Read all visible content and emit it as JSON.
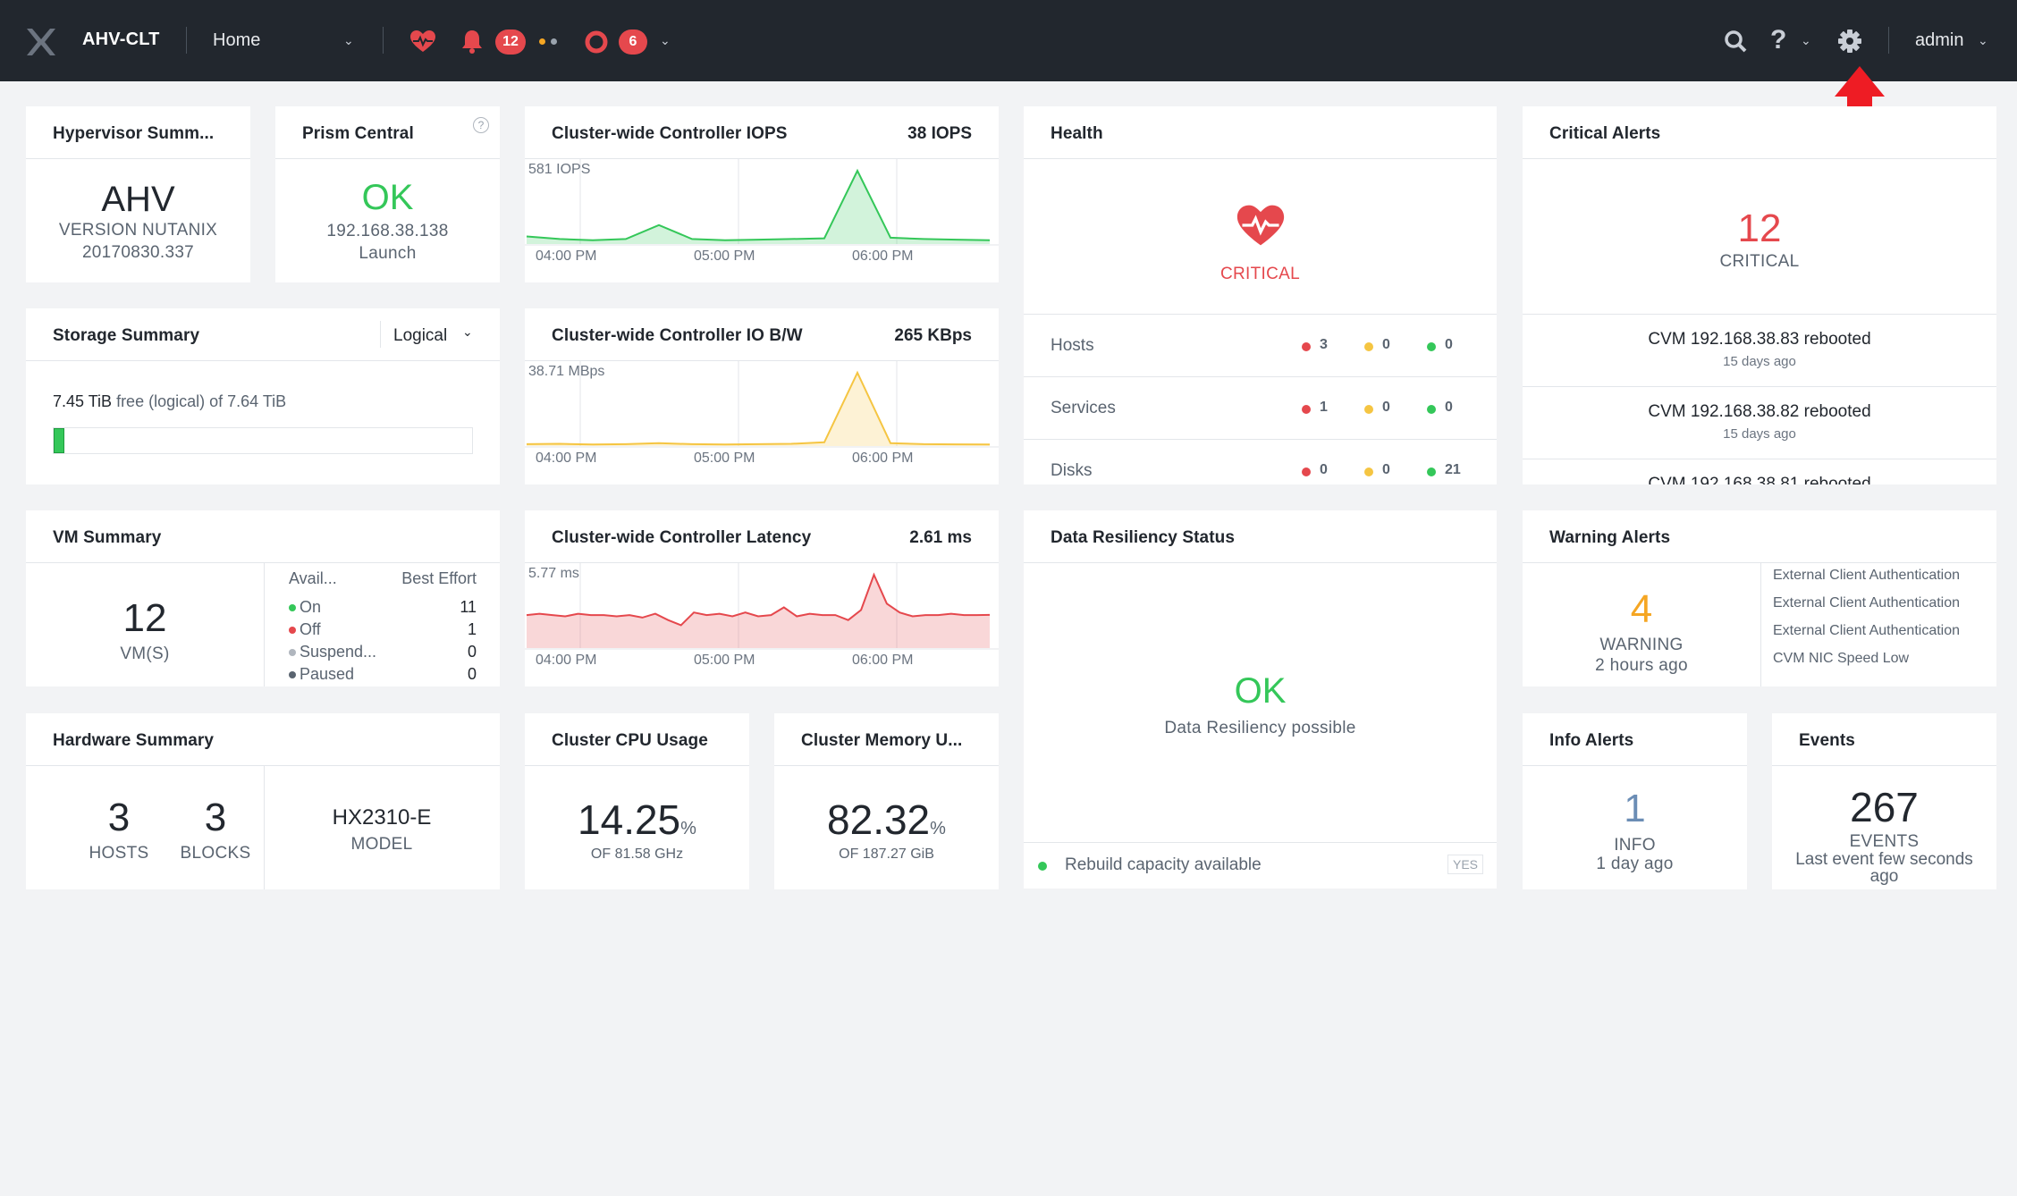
{
  "topbar": {
    "cluster_name": "AHV-CLT",
    "home_label": "Home",
    "alerts_count": "12",
    "tasks_count": "6",
    "user_label": "admin"
  },
  "hypervisor": {
    "title": "Hypervisor Summ...",
    "name": "AHV",
    "version_line1": "VERSION NUTANIX",
    "version_line2": "20170830.337"
  },
  "prism": {
    "title": "Prism Central",
    "status": "OK",
    "ip": "192.168.38.138",
    "launch": "Launch"
  },
  "iops": {
    "title": "Cluster-wide Controller IOPS",
    "current": "38 IOPS",
    "peak": "581 IOPS",
    "ticks": [
      "04:00 PM",
      "05:00 PM",
      "06:00 PM"
    ],
    "color": "#34c759"
  },
  "iobw": {
    "title": "Cluster-wide Controller IO B/W",
    "current": "265 KBps",
    "peak": "38.71 MBps",
    "ticks": [
      "04:00 PM",
      "05:00 PM",
      "06:00 PM"
    ],
    "color": "#f5c542"
  },
  "latency": {
    "title": "Cluster-wide Controller Latency",
    "current": "2.61 ms",
    "peak": "5.77 ms",
    "ticks": [
      "04:00 PM",
      "05:00 PM",
      "06:00 PM"
    ],
    "color": "#e5484d"
  },
  "storage": {
    "title": "Storage Summary",
    "mode": "Logical",
    "free_value": "7.45 TiB",
    "free_text": "free (logical) of",
    "total": "7.64 TiB",
    "used_fraction": 0.025
  },
  "health": {
    "title": "Health",
    "status": "CRITICAL",
    "rows": [
      {
        "label": "Hosts",
        "red": "3",
        "yellow": "0",
        "green": "0"
      },
      {
        "label": "Services",
        "red": "1",
        "yellow": "0",
        "green": "0"
      },
      {
        "label": "Disks",
        "red": "0",
        "yellow": "0",
        "green": "21"
      }
    ]
  },
  "critical": {
    "title": "Critical Alerts",
    "count": "12",
    "label": "CRITICAL",
    "items": [
      {
        "text": "CVM 192.168.38.83 rebooted",
        "age": "15 days ago"
      },
      {
        "text": "CVM 192.168.38.82 rebooted",
        "age": "15 days ago"
      },
      {
        "text": "CVM 192.168.38.81 rebooted",
        "age": ""
      }
    ]
  },
  "vm": {
    "title": "VM Summary",
    "count": "12",
    "unit": "VM(S)",
    "col_header": "Avail...",
    "col_header_right": "Best Effort",
    "rows": [
      {
        "label": "On",
        "value": "11",
        "color": "#34c759"
      },
      {
        "label": "Off",
        "value": "1",
        "color": "#e5484d"
      },
      {
        "label": "Suspend...",
        "value": "0",
        "color": "#b0b6be"
      },
      {
        "label": "Paused",
        "value": "0",
        "color": "#5a6470"
      }
    ]
  },
  "resiliency": {
    "title": "Data Resiliency Status",
    "status": "OK",
    "desc": "Data Resiliency possible",
    "rebuild": "Rebuild capacity available",
    "yes": "YES"
  },
  "warning": {
    "title": "Warning Alerts",
    "count": "4",
    "label": "WARNING",
    "age": "2 hours ago",
    "items": [
      "External Client Authentication",
      "External Client Authentication",
      "External Client Authentication",
      "CVM NIC Speed Low"
    ]
  },
  "hardware": {
    "title": "Hardware Summary",
    "hosts": "3",
    "hosts_label": "HOSTS",
    "blocks": "3",
    "blocks_label": "BLOCKS",
    "model": "HX2310-E",
    "model_label": "MODEL"
  },
  "cpu": {
    "title": "Cluster CPU Usage",
    "value": "14.25",
    "unit": "%",
    "of": "OF 81.58 GHz"
  },
  "memory": {
    "title": "Cluster Memory U...",
    "value": "82.32",
    "unit": "%",
    "of": "OF 187.27 GiB"
  },
  "info": {
    "title": "Info Alerts",
    "count": "1",
    "label": "INFO",
    "age": "1 day ago"
  },
  "events": {
    "title": "Events",
    "count": "267",
    "label": "EVENTS",
    "desc": "Last event few seconds ago"
  },
  "colors": {
    "red": "#e5484d",
    "green": "#34c759",
    "yellow": "#f5c542",
    "warning": "#f5a623",
    "arrow": "#ee1c24"
  },
  "chart_data": [
    {
      "type": "area",
      "title": "Cluster-wide Controller IOPS",
      "x": [
        "03:30 PM",
        "03:45 PM",
        "04:00 PM",
        "04:15 PM",
        "04:30 PM",
        "04:45 PM",
        "05:00 PM",
        "05:15 PM",
        "05:30 PM",
        "05:40 PM",
        "05:45 PM",
        "05:50 PM",
        "06:00 PM",
        "06:15 PM",
        "06:30 PM"
      ],
      "values": [
        60,
        40,
        30,
        40,
        150,
        40,
        30,
        35,
        40,
        45,
        581,
        50,
        40,
        35,
        30
      ],
      "ylim": [
        0,
        581
      ],
      "ticks": [
        "04:00 PM",
        "05:00 PM",
        "06:00 PM"
      ]
    },
    {
      "type": "area",
      "title": "Cluster-wide Controller IO B/W",
      "x": [
        "03:30 PM",
        "03:45 PM",
        "04:00 PM",
        "04:15 PM",
        "04:30 PM",
        "04:45 PM",
        "05:00 PM",
        "05:15 PM",
        "05:30 PM",
        "05:40 PM",
        "05:45 PM",
        "05:50 PM",
        "06:00 PM",
        "06:15 PM",
        "06:30 PM"
      ],
      "values": [
        1,
        1.2,
        0.8,
        1,
        1.5,
        1,
        0.8,
        1,
        1.2,
        2,
        38.71,
        1.5,
        1,
        0.9,
        0.8
      ],
      "ylim": [
        0,
        38.71
      ],
      "ticks": [
        "04:00 PM",
        "05:00 PM",
        "06:00 PM"
      ]
    },
    {
      "type": "area",
      "title": "Cluster-wide Controller Latency",
      "x": [
        "03:30 PM",
        "03:35 PM",
        "03:40 PM",
        "03:45 PM",
        "03:50 PM",
        "03:55 PM",
        "04:00 PM",
        "04:05 PM",
        "04:10 PM",
        "04:15 PM",
        "04:20 PM",
        "04:25 PM",
        "04:30 PM",
        "04:35 PM",
        "04:40 PM",
        "04:45 PM",
        "04:50 PM",
        "04:55 PM",
        "05:00 PM",
        "05:05 PM",
        "05:10 PM",
        "05:15 PM",
        "05:20 PM",
        "05:25 PM",
        "05:30 PM",
        "05:35 PM",
        "05:40 PM",
        "05:45 PM",
        "05:50 PM",
        "05:55 PM",
        "06:00 PM",
        "06:05 PM",
        "06:10 PM",
        "06:15 PM",
        "06:20 PM",
        "06:25 PM",
        "06:30 PM"
      ],
      "values": [
        2.6,
        2.7,
        2.6,
        2.5,
        2.7,
        2.6,
        2.6,
        2.5,
        2.6,
        2.4,
        2.7,
        2.2,
        1.8,
        2.8,
        2.6,
        2.7,
        2.5,
        2.8,
        2.5,
        2.6,
        3.2,
        2.5,
        2.7,
        2.6,
        2.6,
        2.2,
        3.0,
        5.77,
        3.5,
        2.8,
        2.5,
        2.6,
        2.6,
        2.7,
        2.6,
        2.6,
        2.61
      ],
      "ylim": [
        0,
        5.77
      ],
      "ticks": [
        "04:00 PM",
        "05:00 PM",
        "06:00 PM"
      ]
    }
  ]
}
